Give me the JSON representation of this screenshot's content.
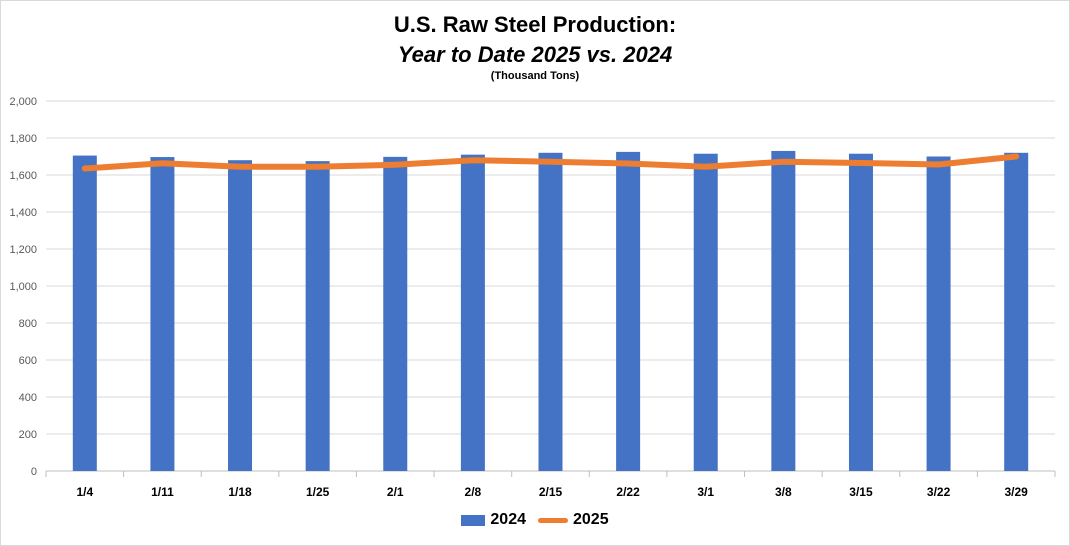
{
  "chart_data": {
    "type": "bar",
    "title": "U.S. Raw Steel Production:",
    "subtitle": "Year to Date 2025 vs. 2024",
    "unit_note": "(Thousand Tons)",
    "categories": [
      "1/4",
      "1/11",
      "1/18",
      "1/25",
      "2/1",
      "2/8",
      "2/15",
      "2/22",
      "3/1",
      "3/8",
      "3/15",
      "3/22",
      "3/29"
    ],
    "series": [
      {
        "name": "2024",
        "kind": "bar",
        "color": "#4472c4",
        "values": [
          1705,
          1697,
          1680,
          1675,
          1698,
          1710,
          1720,
          1725,
          1715,
          1730,
          1715,
          1700,
          1720
        ]
      },
      {
        "name": "2025",
        "kind": "line",
        "color": "#ed7d31",
        "values": [
          1635,
          1663,
          1645,
          1645,
          1655,
          1680,
          1672,
          1662,
          1645,
          1672,
          1665,
          1657,
          1700
        ]
      }
    ],
    "ylim": [
      0,
      2000
    ],
    "yticks": [
      "0",
      "200",
      "400",
      "600",
      "800",
      "1,000",
      "1,200",
      "1,400",
      "1,600",
      "1,800",
      "2,000"
    ],
    "grid": true,
    "legend_position": "bottom"
  }
}
